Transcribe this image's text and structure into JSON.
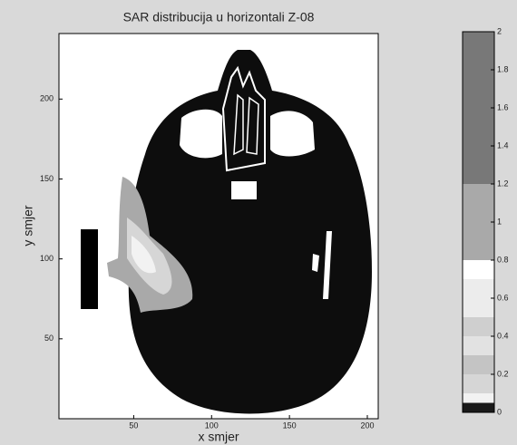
{
  "chart_data": {
    "type": "contour",
    "title": "SAR distribucija u horizontali Z-08",
    "xlabel": "x smjer",
    "ylabel": "y smjer",
    "xlim": [
      2,
      207
    ],
    "xticks": [
      50,
      100,
      150,
      200
    ],
    "ylim": [
      0,
      241
    ],
    "yticks": [
      50,
      100,
      150,
      200
    ],
    "colorbar": {
      "ylim": [
        0,
        2
      ],
      "yticks": [
        0,
        0.2,
        0.4,
        0.6,
        0.8,
        1,
        1.2,
        1.4,
        1.6,
        1.8,
        2
      ],
      "levels": [
        0,
        0.05,
        0.1,
        0.2,
        0.3,
        0.4,
        0.5,
        0.7,
        0.8,
        1.2,
        2
      ],
      "colors": [
        "#1a1a1a",
        "#f2f2f2",
        "#d6d6d6",
        "#c4c4c4",
        "#e2e2e2",
        "#cfcfcf",
        "#ececec",
        "#ffffff",
        "#a9a9a9",
        "#787878"
      ]
    }
  }
}
